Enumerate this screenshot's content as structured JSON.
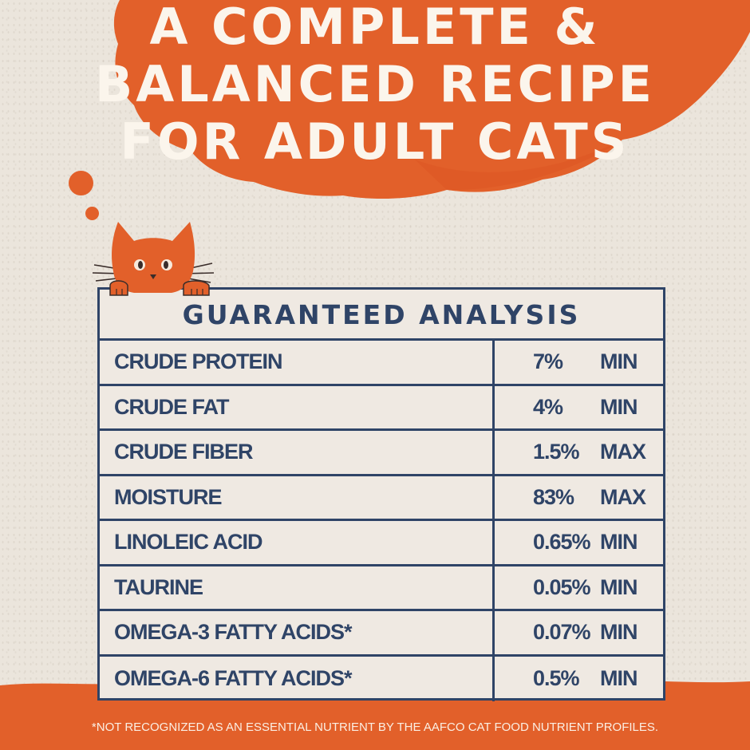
{
  "headline": {
    "line1": "A COMPLETE &",
    "line2": "BALANCED RECIPE",
    "line3": "FOR ADULT CATS"
  },
  "colors": {
    "background": "#ebe5dc",
    "orange": "#e2602a",
    "navy": "#2f4467",
    "table_fill": "#efe9e2",
    "headline_text": "#fbf5ec"
  },
  "table": {
    "title": "GUARANTEED ANALYSIS",
    "rows": [
      {
        "name": "CRUDE PROTEIN",
        "value": "7%",
        "qualifier": "MIN"
      },
      {
        "name": "CRUDE FAT",
        "value": "4%",
        "qualifier": "MIN"
      },
      {
        "name": "CRUDE FIBER",
        "value": "1.5%",
        "qualifier": "MAX"
      },
      {
        "name": "MOISTURE",
        "value": "83%",
        "qualifier": "MAX"
      },
      {
        "name": "LINOLEIC ACID",
        "value": "0.65%",
        "qualifier": "MIN"
      },
      {
        "name": "TAURINE",
        "value": "0.05%",
        "qualifier": "MIN"
      },
      {
        "name": "OMEGA-3 FATTY ACIDS*",
        "value": "0.07%",
        "qualifier": "MIN"
      },
      {
        "name": "OMEGA-6 FATTY ACIDS*",
        "value": "0.5%",
        "qualifier": "MIN"
      }
    ]
  },
  "footnote": "*NOT RECOGNIZED AS AN ESSENTIAL NUTRIENT BY THE AAFCO CAT FOOD NUTRIENT PROFILES.",
  "illustration": {
    "icon": "cat-peeking-icon"
  }
}
